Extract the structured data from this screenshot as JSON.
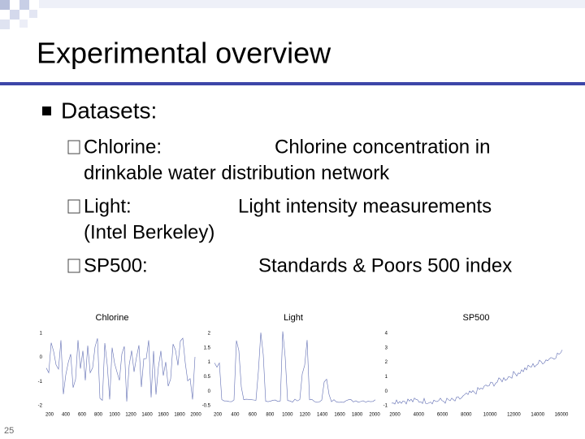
{
  "title": "Experimental overview",
  "bullets": [
    {
      "text": "Datasets:",
      "items": [
        {
          "label": "Chlorine:",
          "text": "Chlorine concentration in",
          "cont": "drinkable water distribution network"
        },
        {
          "label": "Light:",
          "text": "Light intensity measurements",
          "cont": "(Intel Berkeley)"
        },
        {
          "label": "SP500:",
          "text": "Standards & Poors 500 index"
        }
      ]
    }
  ],
  "charts": [
    {
      "title": "Chlorine",
      "yticks": [
        "1",
        "0",
        "-1",
        "-2"
      ],
      "xticks": [
        "200",
        "400",
        "600",
        "800",
        "1000",
        "1200",
        "1400",
        "1600",
        "1800",
        "2000"
      ]
    },
    {
      "title": "Light",
      "yticks": [
        "2",
        "1.5",
        "1",
        "0.5",
        "0",
        "-0.5"
      ],
      "xticks": [
        "200",
        "400",
        "600",
        "800",
        "1000",
        "1200",
        "1400",
        "1600",
        "1800",
        "2000"
      ]
    },
    {
      "title": "SP500",
      "yticks": [
        "4",
        "3",
        "2",
        "1",
        "0",
        "-1"
      ],
      "xticks": [
        "2000",
        "4000",
        "6000",
        "8000",
        "10000",
        "12000",
        "14000",
        "16000"
      ]
    }
  ],
  "page_number": "25"
}
